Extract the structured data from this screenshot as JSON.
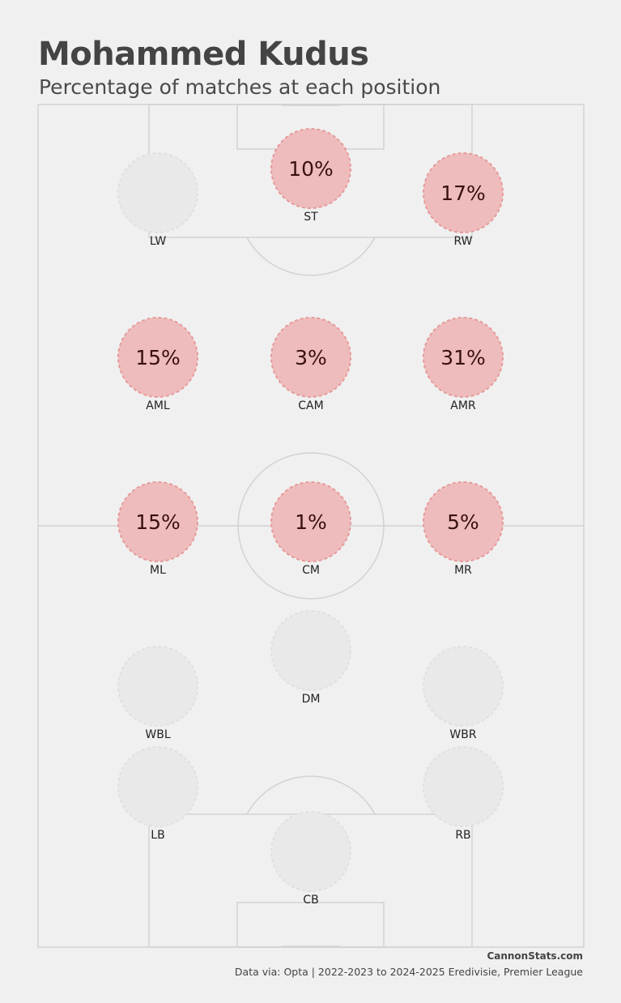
{
  "title": "Mohammed Kudus",
  "subtitle": "Percentage of matches at each position",
  "footer": {
    "brand": "CannonStats.com",
    "source": "Data via: Opta | 2022-2023 to 2024-2025 Eredivisie, Premier League"
  },
  "colors": {
    "background": "#f0f0f0",
    "pitch_line": "#d2d2d2",
    "active_fill": "#eebcbc",
    "active_border": "#e79a9a",
    "inactive_fill": "#e9e9e9",
    "inactive_border": "#e0e0e0",
    "value_text": "#3a1010",
    "label_text": "#222222"
  },
  "chart_data": {
    "type": "positional_pitch",
    "title": "Mohammed Kudus",
    "subtitle": "Percentage of matches at each position",
    "unit": "%",
    "positions": [
      {
        "code": "ST",
        "value": 10,
        "label": "10%"
      },
      {
        "code": "LW",
        "value": null,
        "label": ""
      },
      {
        "code": "RW",
        "value": 17,
        "label": "17%"
      },
      {
        "code": "AML",
        "value": 15,
        "label": "15%"
      },
      {
        "code": "CAM",
        "value": 3,
        "label": "3%"
      },
      {
        "code": "AMR",
        "value": 31,
        "label": "31%"
      },
      {
        "code": "ML",
        "value": 15,
        "label": "15%"
      },
      {
        "code": "CM",
        "value": 1,
        "label": "1%"
      },
      {
        "code": "MR",
        "value": 5,
        "label": "5%"
      },
      {
        "code": "DM",
        "value": null,
        "label": ""
      },
      {
        "code": "WBL",
        "value": null,
        "label": ""
      },
      {
        "code": "WBR",
        "value": null,
        "label": ""
      },
      {
        "code": "LB",
        "value": null,
        "label": ""
      },
      {
        "code": "RB",
        "value": null,
        "label": ""
      },
      {
        "code": "CB",
        "value": null,
        "label": ""
      }
    ]
  }
}
